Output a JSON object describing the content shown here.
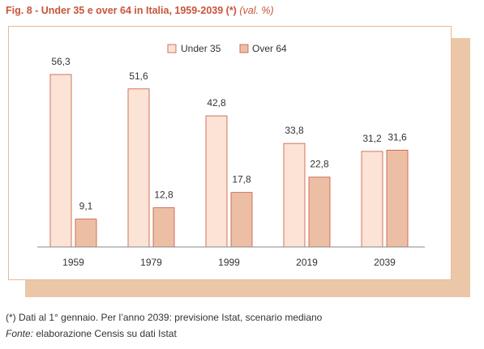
{
  "title": {
    "main": "Fig. 8 - Under 35 e over 64 in Italia, 1959-2039 (*)",
    "unit": "(val. %)"
  },
  "footnote": "(*) Dati al 1° gennaio. Per l’anno 2039: previsione Istat, scenario mediano",
  "source": {
    "label": "Fonte:",
    "text": "elaborazione Censis su dati Istat"
  },
  "colors": {
    "title": "#c8553a",
    "under35": "#fbe3d6",
    "over64": "#ecbfa5",
    "bar_stroke": "#c8553a",
    "axis": "#8a8a8a",
    "shadow": "#ebc7a8",
    "panel_border": "#e6b999"
  },
  "chart_data": {
    "type": "bar",
    "title": "Under 35 e over 64 in Italia, 1959-2039 (*)",
    "xlabel": "",
    "ylabel": "",
    "ylim": [
      0,
      60
    ],
    "grid": false,
    "legend_position": "top-right",
    "categories": [
      "1959",
      "1979",
      "1999",
      "2019",
      "2039"
    ],
    "series": [
      {
        "name": "Under 35",
        "values": [
          56.3,
          51.6,
          42.8,
          33.8,
          31.2
        ],
        "labels": [
          "56,3",
          "51,6",
          "42,8",
          "33,8",
          "31,2"
        ]
      },
      {
        "name": "Over 64",
        "values": [
          9.1,
          12.8,
          17.8,
          22.8,
          31.6
        ],
        "labels": [
          "9,1",
          "12,8",
          "17,8",
          "22,8",
          "31,6"
        ]
      }
    ]
  }
}
